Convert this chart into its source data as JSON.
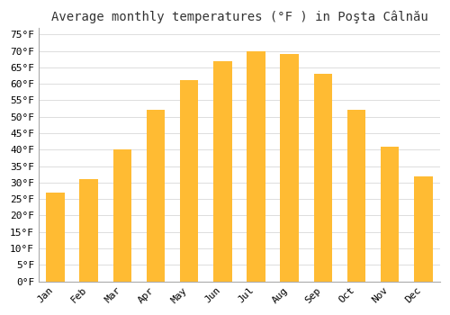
{
  "title": "Average monthly temperatures (°F ) in Poşta Câlnău",
  "months": [
    "Jan",
    "Feb",
    "Mar",
    "Apr",
    "May",
    "Jun",
    "Jul",
    "Aug",
    "Sep",
    "Oct",
    "Nov",
    "Dec"
  ],
  "values": [
    27,
    31,
    40,
    52,
    61,
    67,
    70,
    69,
    63,
    52,
    41,
    32
  ],
  "bar_color": "#FFBB33",
  "ylim": [
    0,
    77
  ],
  "yticks": [
    0,
    5,
    10,
    15,
    20,
    25,
    30,
    35,
    40,
    45,
    50,
    55,
    60,
    65,
    70,
    75
  ],
  "title_fontsize": 10,
  "tick_fontsize": 8,
  "background_color": "#ffffff",
  "grid_color": "#dddddd",
  "bar_width": 0.55
}
